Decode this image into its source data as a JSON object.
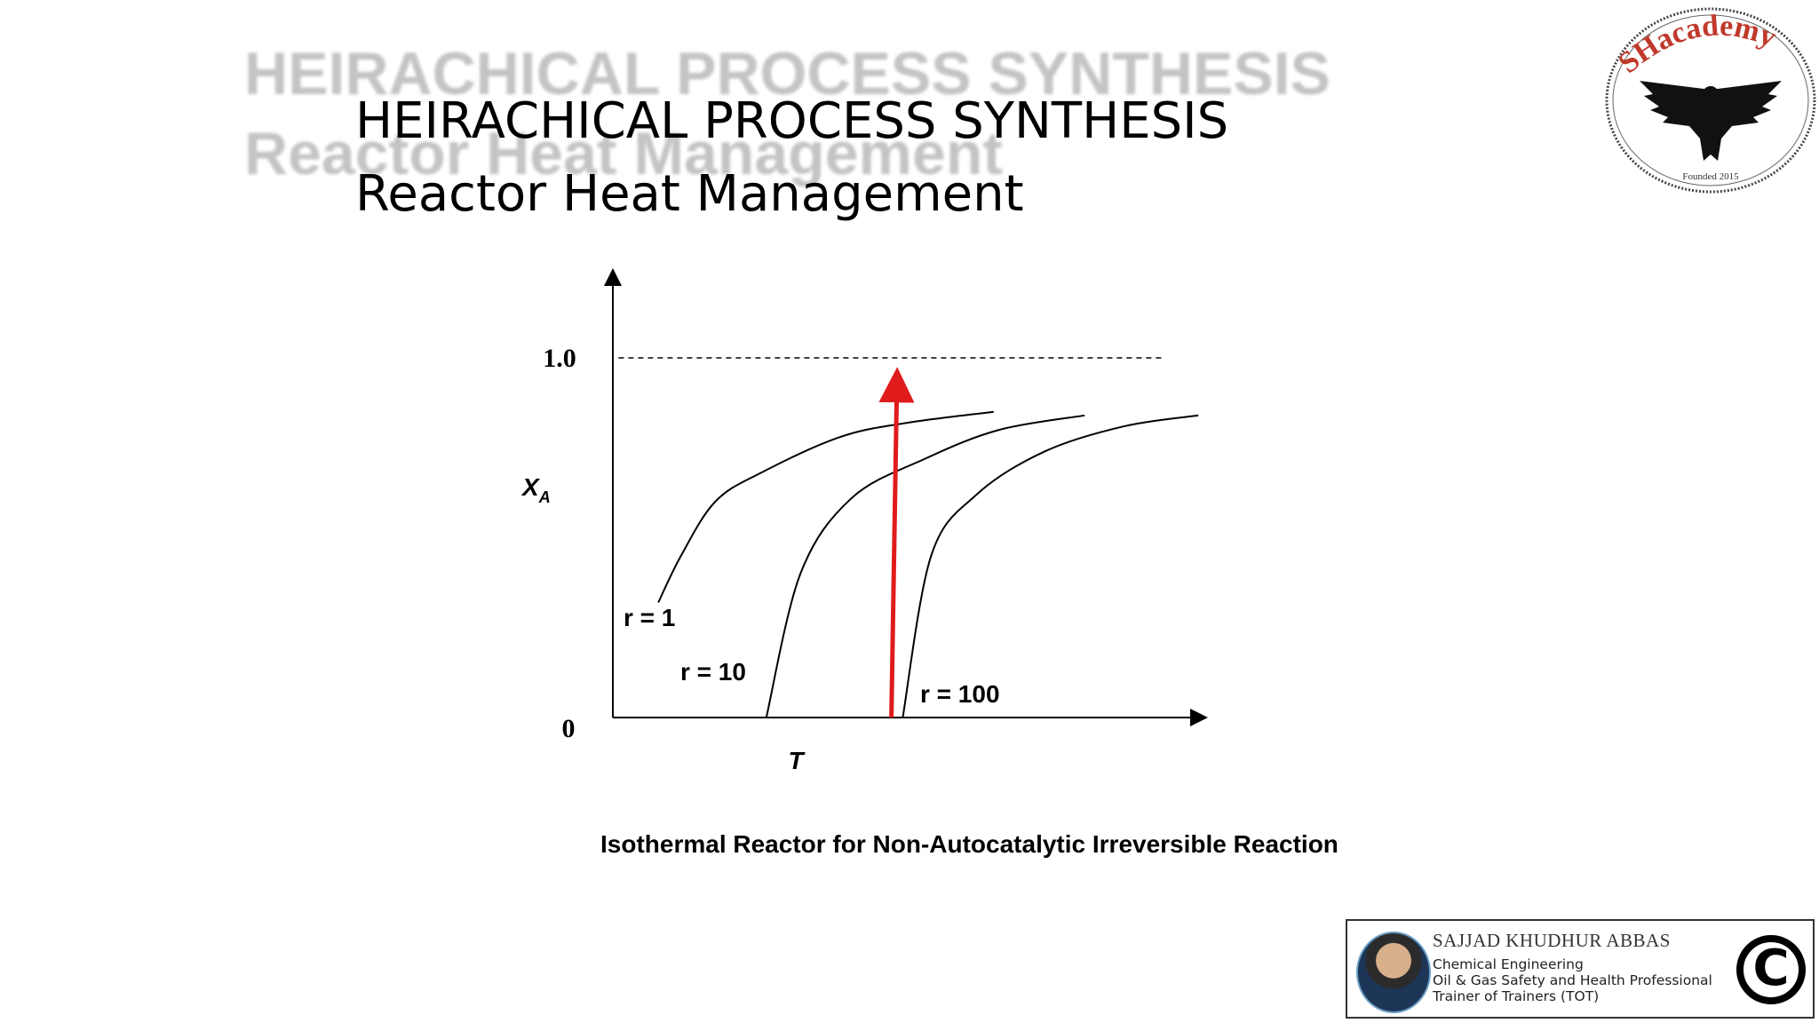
{
  "ghost_title": {
    "line1": "HEIRACHICAL PROCESS SYNTHESIS",
    "line2": "Reactor Heat Management"
  },
  "title": {
    "line1": "HEIRACHICAL PROCESS SYNTHESIS",
    "line2": "Reactor Heat Management"
  },
  "logo": {
    "brand": "SHacademy",
    "founded": "Founded 2015",
    "brand_color": "#c0392b"
  },
  "chart_data": {
    "type": "line",
    "title": "",
    "xlabel": "T",
    "ylabel": "X",
    "ylabel_subscript": "A",
    "y_tick_labels": [
      "0",
      "1.0"
    ],
    "ylim": [
      0,
      1.0
    ],
    "xlim": [
      0,
      1.0
    ],
    "asymptote": {
      "y": 1.0,
      "style": "dashed"
    },
    "series": [
      {
        "name": "r = 1",
        "x": [
          0.08,
          0.12,
          0.18,
          0.26,
          0.4,
          0.52,
          0.67
        ],
        "y": [
          0.32,
          0.45,
          0.6,
          0.68,
          0.78,
          0.82,
          0.85
        ]
      },
      {
        "name": "r = 10",
        "x": [
          0.27,
          0.33,
          0.42,
          0.55,
          0.68,
          0.83
        ],
        "y": [
          0.0,
          0.4,
          0.61,
          0.72,
          0.8,
          0.84
        ]
      },
      {
        "name": "r = 100",
        "x": [
          0.51,
          0.56,
          0.64,
          0.76,
          0.9,
          1.03
        ],
        "y": [
          0.0,
          0.45,
          0.62,
          0.74,
          0.81,
          0.84
        ]
      }
    ],
    "arrow": {
      "x_start": 0.49,
      "y_start": 0.0,
      "x_end": 0.5,
      "y_end": 0.95,
      "color": "#e01b1b"
    },
    "caption": "Isothermal Reactor for Non-Autocatalytic Irreversible Reaction"
  },
  "author": {
    "name": "SAJJAD KHUDHUR ABBAS",
    "line1": "Chemical Engineering",
    "line2": "Oil & Gas Safety and Health Professional",
    "line3": "Trainer of Trainers (TOT)",
    "copyright": "C"
  }
}
